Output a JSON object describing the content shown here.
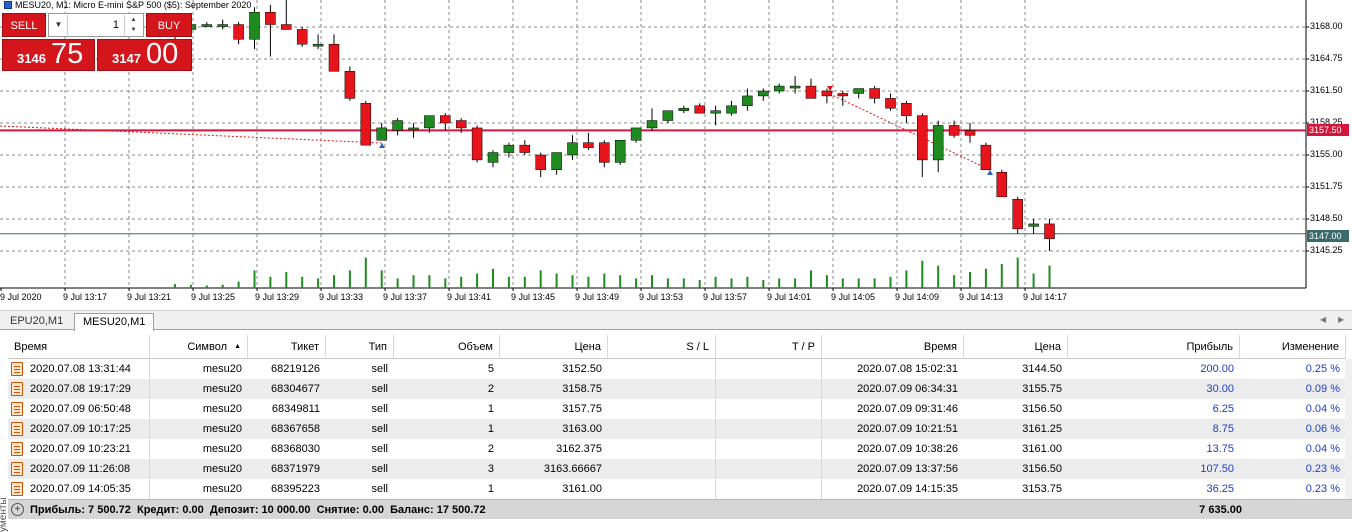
{
  "chart": {
    "title": "MESU20, M1:  Micro E-mini S&P 500 ($5): September 2020",
    "colors": {
      "bull": "#1f8a1f",
      "bear": "#e8141b",
      "grid": "#8a8a8a",
      "level_line": "#d4163c",
      "current_line": "#3a6a6a",
      "volume": "#1f8a1f"
    },
    "price_axis": [
      "3168.00",
      "3164.75",
      "3161.50",
      "3158.25",
      "3155.00",
      "3151.75",
      "3148.50",
      "3145.25"
    ],
    "level_tag": "3157.50",
    "current_tag": "3147.00",
    "time_axis": [
      "9 Jul 2020",
      "9 Jul 13:17",
      "9 Jul 13:21",
      "9 Jul 13:25",
      "9 Jul 13:29",
      "9 Jul 13:33",
      "9 Jul 13:37",
      "9 Jul 13:41",
      "9 Jul 13:45",
      "9 Jul 13:49",
      "9 Jul 13:53",
      "9 Jul 13:57",
      "9 Jul 14:01",
      "9 Jul 14:05",
      "9 Jul 14:09",
      "9 Jul 14:13",
      "9 Jul 14:17"
    ],
    "candles": [
      {
        "o": 3167.25,
        "h": 3167.75,
        "l": 3166.75,
        "c": 3167.75
      },
      {
        "o": 3167.75,
        "h": 3168.75,
        "l": 3167.25,
        "c": 3168.25
      },
      {
        "o": 3168.25,
        "h": 3168.5,
        "l": 3168.0,
        "c": 3168.25
      },
      {
        "o": 3168.25,
        "h": 3168.75,
        "l": 3167.75,
        "c": 3168.25
      },
      {
        "o": 3168.25,
        "h": 3168.5,
        "l": 3166.25,
        "c": 3166.75
      },
      {
        "o": 3166.75,
        "h": 3170.0,
        "l": 3165.75,
        "c": 3169.5
      },
      {
        "o": 3169.5,
        "h": 3170.25,
        "l": 3165.0,
        "c": 3168.25
      },
      {
        "o": 3168.25,
        "h": 3171.25,
        "l": 3167.75,
        "c": 3167.75
      },
      {
        "o": 3167.75,
        "h": 3168.0,
        "l": 3166.0,
        "c": 3166.25
      },
      {
        "o": 3166.25,
        "h": 3167.25,
        "l": 3165.75,
        "c": 3166.25
      },
      {
        "o": 3166.25,
        "h": 3167.25,
        "l": 3163.5,
        "c": 3163.5
      },
      {
        "o": 3163.5,
        "h": 3164.0,
        "l": 3160.5,
        "c": 3160.75
      },
      {
        "o": 3160.25,
        "h": 3160.5,
        "l": 3156.0,
        "c": 3156.0
      },
      {
        "o": 3156.5,
        "h": 3158.25,
        "l": 3156.5,
        "c": 3157.75
      },
      {
        "o": 3157.5,
        "h": 3158.75,
        "l": 3157.0,
        "c": 3158.5
      },
      {
        "o": 3157.75,
        "h": 3158.25,
        "l": 3156.75,
        "c": 3157.75
      },
      {
        "o": 3157.75,
        "h": 3159.0,
        "l": 3157.25,
        "c": 3159.0
      },
      {
        "o": 3159.0,
        "h": 3159.25,
        "l": 3157.5,
        "c": 3158.25
      },
      {
        "o": 3158.5,
        "h": 3158.75,
        "l": 3157.25,
        "c": 3157.75
      },
      {
        "o": 3157.75,
        "h": 3158.0,
        "l": 3154.25,
        "c": 3154.5
      },
      {
        "o": 3154.25,
        "h": 3155.5,
        "l": 3153.75,
        "c": 3155.25
      },
      {
        "o": 3155.25,
        "h": 3156.25,
        "l": 3154.75,
        "c": 3156.0
      },
      {
        "o": 3156.0,
        "h": 3156.5,
        "l": 3155.0,
        "c": 3155.25
      },
      {
        "o": 3155.0,
        "h": 3155.25,
        "l": 3152.75,
        "c": 3153.5
      },
      {
        "o": 3153.5,
        "h": 3155.25,
        "l": 3153.0,
        "c": 3155.25
      },
      {
        "o": 3155.0,
        "h": 3157.0,
        "l": 3154.5,
        "c": 3156.25
      },
      {
        "o": 3156.25,
        "h": 3157.25,
        "l": 3155.5,
        "c": 3155.75
      },
      {
        "o": 3156.25,
        "h": 3156.5,
        "l": 3153.75,
        "c": 3154.25
      },
      {
        "o": 3154.25,
        "h": 3156.5,
        "l": 3154.0,
        "c": 3156.5
      },
      {
        "o": 3156.5,
        "h": 3157.75,
        "l": 3156.25,
        "c": 3157.75
      },
      {
        "o": 3157.75,
        "h": 3159.75,
        "l": 3157.5,
        "c": 3158.5
      },
      {
        "o": 3158.5,
        "h": 3159.5,
        "l": 3158.25,
        "c": 3159.5
      },
      {
        "o": 3159.5,
        "h": 3160.0,
        "l": 3159.25,
        "c": 3159.75
      },
      {
        "o": 3160.0,
        "h": 3160.25,
        "l": 3159.25,
        "c": 3159.25
      },
      {
        "o": 3159.25,
        "h": 3160.0,
        "l": 3158.0,
        "c": 3159.5
      },
      {
        "o": 3159.25,
        "h": 3160.5,
        "l": 3159.0,
        "c": 3160.0
      },
      {
        "o": 3160.0,
        "h": 3161.75,
        "l": 3159.5,
        "c": 3161.0
      },
      {
        "o": 3161.0,
        "h": 3161.75,
        "l": 3160.5,
        "c": 3161.5
      },
      {
        "o": 3161.5,
        "h": 3162.25,
        "l": 3161.25,
        "c": 3162.0
      },
      {
        "o": 3162.0,
        "h": 3163.0,
        "l": 3161.25,
        "c": 3162.0
      },
      {
        "o": 3162.0,
        "h": 3162.75,
        "l": 3160.75,
        "c": 3160.75
      },
      {
        "o": 3161.5,
        "h": 3161.75,
        "l": 3160.25,
        "c": 3161.0
      },
      {
        "o": 3161.25,
        "h": 3161.5,
        "l": 3160.0,
        "c": 3161.0
      },
      {
        "o": 3161.25,
        "h": 3161.75,
        "l": 3160.75,
        "c": 3161.75
      },
      {
        "o": 3161.75,
        "h": 3162.0,
        "l": 3160.25,
        "c": 3160.75
      },
      {
        "o": 3160.75,
        "h": 3161.25,
        "l": 3159.5,
        "c": 3159.75
      },
      {
        "o": 3160.25,
        "h": 3160.5,
        "l": 3158.25,
        "c": 3159.0
      },
      {
        "o": 3159.0,
        "h": 3159.25,
        "l": 3152.75,
        "c": 3154.5
      },
      {
        "o": 3154.5,
        "h": 3158.5,
        "l": 3153.25,
        "c": 3158.0
      },
      {
        "o": 3158.0,
        "h": 3158.5,
        "l": 3156.75,
        "c": 3157.0
      },
      {
        "o": 3157.5,
        "h": 3158.25,
        "l": 3156.25,
        "c": 3157.0
      },
      {
        "o": 3156.0,
        "h": 3156.25,
        "l": 3153.5,
        "c": 3153.5
      },
      {
        "o": 3153.25,
        "h": 3153.5,
        "l": 3150.75,
        "c": 3150.75
      },
      {
        "o": 3150.5,
        "h": 3150.75,
        "l": 3147.0,
        "c": 3147.5
      },
      {
        "o": 3147.75,
        "h": 3148.5,
        "l": 3147.0,
        "c": 3148.0
      },
      {
        "o": 3148.0,
        "h": 3148.5,
        "l": 3145.25,
        "c": 3146.5
      }
    ],
    "volumes": [
      0.12,
      0.1,
      0.08,
      0.1,
      0.2,
      0.55,
      0.35,
      0.5,
      0.35,
      0.3,
      0.4,
      0.55,
      0.95,
      0.55,
      0.3,
      0.4,
      0.4,
      0.3,
      0.35,
      0.45,
      0.6,
      0.35,
      0.35,
      0.55,
      0.45,
      0.4,
      0.35,
      0.45,
      0.4,
      0.3,
      0.4,
      0.3,
      0.3,
      0.25,
      0.35,
      0.3,
      0.35,
      0.25,
      0.3,
      0.3,
      0.55,
      0.4,
      0.3,
      0.3,
      0.3,
      0.35,
      0.55,
      0.85,
      0.7,
      0.4,
      0.5,
      0.6,
      0.75,
      0.95,
      0.45,
      0.7
    ]
  },
  "trade_panel": {
    "sell_label": "SELL",
    "buy_label": "BUY",
    "lot_value": "1",
    "bid_small": "3146",
    "bid_big": "75",
    "ask_small": "3147",
    "ask_big": "00"
  },
  "tabs": [
    "EPU20,M1",
    "MESU20,M1"
  ],
  "side_label": "ументы",
  "table": {
    "headers": [
      "Время",
      "Символ",
      "Тикет",
      "Тип",
      "Объем",
      "Цена",
      "S / L",
      "T / P",
      "Время",
      "Цена",
      "Прибыль",
      "Изменение"
    ],
    "rows": [
      [
        "2020.07.08 13:31:44",
        "mesu20",
        "68219126",
        "sell",
        "5",
        "3152.50",
        "",
        "",
        "2020.07.08 15:02:31",
        "3144.50",
        "200.00",
        "0.25 %"
      ],
      [
        "2020.07.08 19:17:29",
        "mesu20",
        "68304677",
        "sell",
        "2",
        "3158.75",
        "",
        "",
        "2020.07.09 06:34:31",
        "3155.75",
        "30.00",
        "0.09 %"
      ],
      [
        "2020.07.09 06:50:48",
        "mesu20",
        "68349811",
        "sell",
        "1",
        "3157.75",
        "",
        "",
        "2020.07.09 09:31:46",
        "3156.50",
        "6.25",
        "0.04 %"
      ],
      [
        "2020.07.09 10:17:25",
        "mesu20",
        "68367658",
        "sell",
        "1",
        "3163.00",
        "",
        "",
        "2020.07.09 10:21:51",
        "3161.25",
        "8.75",
        "0.06 %"
      ],
      [
        "2020.07.09 10:23:21",
        "mesu20",
        "68368030",
        "sell",
        "2",
        "3162.375",
        "",
        "",
        "2020.07.09 10:38:26",
        "3161.00",
        "13.75",
        "0.04 %"
      ],
      [
        "2020.07.09 11:26:08",
        "mesu20",
        "68371979",
        "sell",
        "3",
        "3163.66667",
        "",
        "",
        "2020.07.09 13:37:56",
        "3156.50",
        "107.50",
        "0.23 %"
      ],
      [
        "2020.07.09 14:05:35",
        "mesu20",
        "68395223",
        "sell",
        "1",
        "3161.00",
        "",
        "",
        "2020.07.09 14:15:35",
        "3153.75",
        "36.25",
        "0.23 %"
      ]
    ],
    "summary": "Прибыль: 7 500.72  Кредит: 0.00  Депозит: 10 000.00  Снятие: 0.00  Баланс: 17 500.72",
    "summary_profit": "7 635.00"
  }
}
